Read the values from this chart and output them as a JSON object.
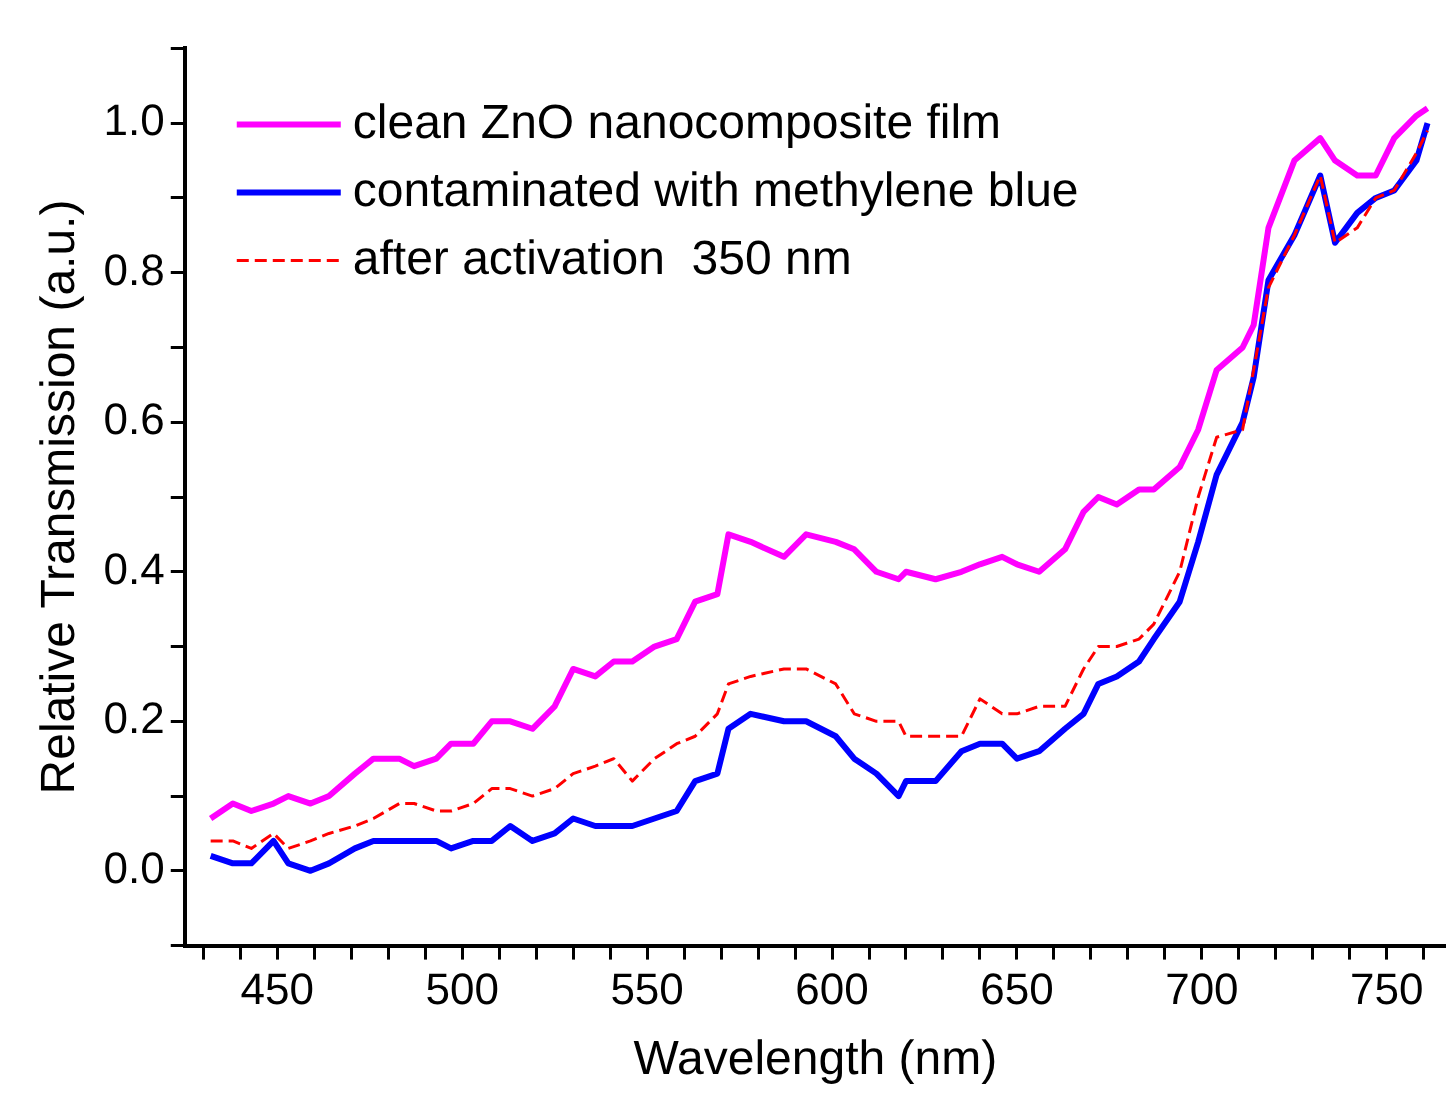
{
  "chart_data": {
    "type": "line",
    "xlabel": "Wavelength (nm)",
    "ylabel": "Relative Transmission (a.u.)",
    "x": [
      432,
      438,
      443,
      449,
      453,
      459,
      464,
      471,
      476,
      483,
      487,
      493,
      497,
      503,
      508,
      513,
      519,
      525,
      530,
      536,
      541,
      546,
      552,
      558,
      563,
      569,
      572,
      578,
      587,
      593,
      601,
      606,
      612,
      618,
      620,
      628,
      635,
      640,
      646,
      650,
      656,
      663,
      668,
      672,
      677,
      683,
      687,
      694,
      699,
      704,
      711,
      714,
      718,
      725,
      732,
      736,
      742,
      747,
      752,
      758,
      761
    ],
    "series": [
      {
        "name": "clean ZnO nanocomposite film",
        "color": "#ff00ff",
        "values": [
          0.07,
          0.09,
          0.08,
          0.09,
          0.1,
          0.09,
          0.1,
          0.13,
          0.15,
          0.15,
          0.14,
          0.15,
          0.17,
          0.17,
          0.2,
          0.2,
          0.19,
          0.22,
          0.27,
          0.26,
          0.28,
          0.28,
          0.3,
          0.31,
          0.36,
          0.37,
          0.45,
          0.44,
          0.42,
          0.45,
          0.44,
          0.43,
          0.4,
          0.39,
          0.4,
          0.39,
          0.4,
          0.41,
          0.42,
          0.41,
          0.4,
          0.43,
          0.48,
          0.5,
          0.49,
          0.51,
          0.51,
          0.54,
          0.59,
          0.67,
          0.7,
          0.73,
          0.86,
          0.95,
          0.98,
          0.95,
          0.93,
          0.93,
          0.98,
          1.01,
          1.02
        ]
      },
      {
        "name": "contaminated with methylene blue",
        "color": "#0000ff",
        "values": [
          0.02,
          0.01,
          0.01,
          0.04,
          0.01,
          0.0,
          0.01,
          0.03,
          0.04,
          0.04,
          0.04,
          0.04,
          0.03,
          0.04,
          0.04,
          0.06,
          0.04,
          0.05,
          0.07,
          0.06,
          0.06,
          0.06,
          0.07,
          0.08,
          0.12,
          0.13,
          0.19,
          0.21,
          0.2,
          0.2,
          0.18,
          0.15,
          0.13,
          0.1,
          0.12,
          0.12,
          0.16,
          0.17,
          0.17,
          0.15,
          0.16,
          0.19,
          0.21,
          0.25,
          0.26,
          0.28,
          0.31,
          0.36,
          0.44,
          0.53,
          0.6,
          0.66,
          0.79,
          0.85,
          0.93,
          0.84,
          0.88,
          0.9,
          0.91,
          0.95,
          1.0
        ]
      },
      {
        "name": "after activation  350 nm",
        "color": "#ff0000",
        "line_style": "dashed",
        "values": [
          0.04,
          0.04,
          0.03,
          0.05,
          0.03,
          0.04,
          0.05,
          0.06,
          0.07,
          0.09,
          0.09,
          0.08,
          0.08,
          0.09,
          0.11,
          0.11,
          0.1,
          0.11,
          0.13,
          0.14,
          0.15,
          0.12,
          0.15,
          0.17,
          0.18,
          0.21,
          0.25,
          0.26,
          0.27,
          0.27,
          0.25,
          0.21,
          0.2,
          0.2,
          0.18,
          0.18,
          0.18,
          0.23,
          0.21,
          0.21,
          0.22,
          0.22,
          0.27,
          0.3,
          0.3,
          0.31,
          0.33,
          0.4,
          0.5,
          0.58,
          0.59,
          0.67,
          0.78,
          0.85,
          0.93,
          0.84,
          0.86,
          0.9,
          0.91,
          0.96,
          0.99
        ]
      }
    ],
    "xlim": [
      425,
      766
    ],
    "xticks": [
      {
        "value": 430,
        "label": null
      },
      {
        "value": 440,
        "label": null
      },
      450,
      {
        "value": 460,
        "label": null
      },
      {
        "value": 470,
        "label": null
      },
      {
        "value": 480,
        "label": null
      },
      {
        "value": 490,
        "label": null
      },
      500,
      {
        "value": 510,
        "label": null
      },
      {
        "value": 520,
        "label": null
      },
      {
        "value": 530,
        "label": null
      },
      {
        "value": 540,
        "label": null
      },
      550,
      {
        "value": 560,
        "label": null
      },
      {
        "value": 570,
        "label": null
      },
      {
        "value": 580,
        "label": null
      },
      {
        "value": 590,
        "label": null
      },
      600,
      {
        "value": 610,
        "label": null
      },
      {
        "value": 620,
        "label": null
      },
      {
        "value": 630,
        "label": null
      },
      {
        "value": 640,
        "label": null
      },
      650,
      {
        "value": 660,
        "label": null
      },
      {
        "value": 670,
        "label": null
      },
      {
        "value": 680,
        "label": null
      },
      {
        "value": 690,
        "label": null
      },
      700,
      {
        "value": 710,
        "label": null
      },
      {
        "value": 720,
        "label": null
      },
      {
        "value": 730,
        "label": null
      },
      {
        "value": 740,
        "label": null
      },
      750,
      {
        "value": 760,
        "label": null
      }
    ],
    "ylim": [
      -0.1,
      1.1
    ],
    "yticks": [
      {
        "value": -0.1,
        "label": null
      },
      {
        "value": 0,
        "label": "0.0"
      },
      {
        "value": 0.1,
        "label": null
      },
      {
        "value": 0.2,
        "label": "0.2"
      },
      {
        "value": 0.3,
        "label": null
      },
      {
        "value": 0.4,
        "label": "0.4"
      },
      {
        "value": 0.5,
        "label": null
      },
      {
        "value": 0.6,
        "label": "0.6"
      },
      {
        "value": 0.7,
        "label": null
      },
      {
        "value": 0.8,
        "label": "0.8"
      },
      {
        "value": 0.9,
        "label": null
      },
      {
        "value": 1.0,
        "label": "1.0"
      },
      {
        "value": 1.1,
        "label": null
      }
    ],
    "grid": false,
    "legend": "top left",
    "marker": "none",
    "line_style": "solid"
  }
}
